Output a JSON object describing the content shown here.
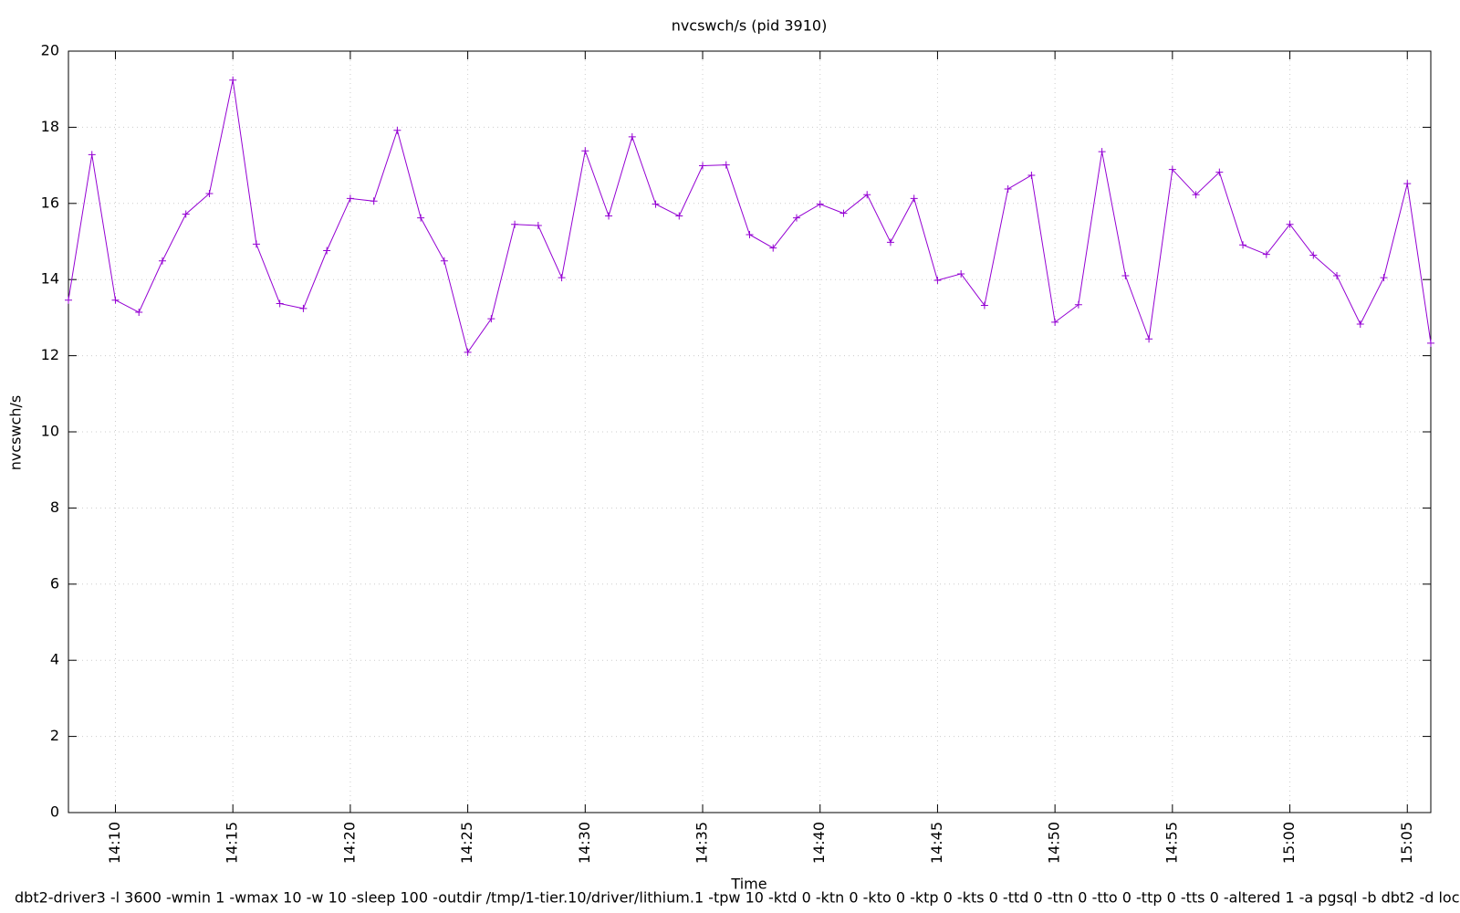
{
  "chart_data": {
    "type": "line",
    "title": "nvcswch/s (pid 3910)",
    "x_label": "Time",
    "y_label": "nvcswch/s",
    "footer": "dbt2-driver3 -l 3600 -wmin 1 -wmax 10 -w 10 -sleep 100 -outdir /tmp/1-tier.10/driver/lithium.1 -tpw 10 -ktd 0 -ktn 0 -kto 0 -ktp 0 -kts 0 -ttd 0 -ttn 0 -tto 0 -ttp 0 -tts 0 -altered 1 -a pgsql -b dbt2 -d localh",
    "x": [
      "14:08",
      "14:09",
      "14:10",
      "14:11",
      "14:12",
      "14:13",
      "14:14",
      "14:15",
      "14:16",
      "14:17",
      "14:18",
      "14:19",
      "14:20",
      "14:21",
      "14:22",
      "14:23",
      "14:24",
      "14:25",
      "14:26",
      "14:27",
      "14:28",
      "14:29",
      "14:30",
      "14:31",
      "14:32",
      "14:33",
      "14:34",
      "14:35",
      "14:36",
      "14:37",
      "14:38",
      "14:39",
      "14:40",
      "14:41",
      "14:42",
      "14:43",
      "14:44",
      "14:45",
      "14:46",
      "14:47",
      "14:48",
      "14:49",
      "14:50",
      "14:51",
      "14:52",
      "14:53",
      "14:54",
      "14:55",
      "14:56",
      "14:57",
      "14:58",
      "14:59",
      "15:00",
      "15:01",
      "15:02",
      "15:03",
      "15:04",
      "15:05",
      "15:06"
    ],
    "series": [
      {
        "name": "nvcswch/s",
        "color": "#9400d3",
        "values": [
          13.46,
          17.28,
          13.46,
          13.14,
          14.49,
          15.72,
          16.26,
          19.24,
          14.93,
          13.37,
          13.24,
          14.76,
          16.13,
          16.06,
          17.92,
          15.62,
          14.49,
          12.09,
          12.97,
          15.45,
          15.42,
          14.05,
          17.38,
          15.67,
          17.75,
          15.98,
          15.67,
          16.99,
          17.01,
          15.18,
          14.83,
          15.62,
          15.98,
          15.74,
          16.23,
          14.98,
          16.13,
          13.98,
          14.15,
          13.32,
          16.38,
          16.74,
          12.88,
          13.34,
          17.36,
          14.1,
          12.44,
          16.89,
          16.23,
          16.82,
          14.91,
          14.66,
          15.45,
          14.64,
          14.1,
          12.83,
          14.05,
          16.52,
          12.33
        ]
      }
    ],
    "xlim": [
      "14:08",
      "15:06"
    ],
    "xticks": [
      "14:10",
      "14:15",
      "14:20",
      "14:25",
      "14:30",
      "14:35",
      "14:40",
      "14:45",
      "14:50",
      "14:55",
      "15:00",
      "15:05"
    ],
    "ylim": [
      0,
      20
    ],
    "yticks": [
      0,
      2,
      4,
      6,
      8,
      10,
      12,
      14,
      16,
      18,
      20
    ],
    "grid": true
  }
}
